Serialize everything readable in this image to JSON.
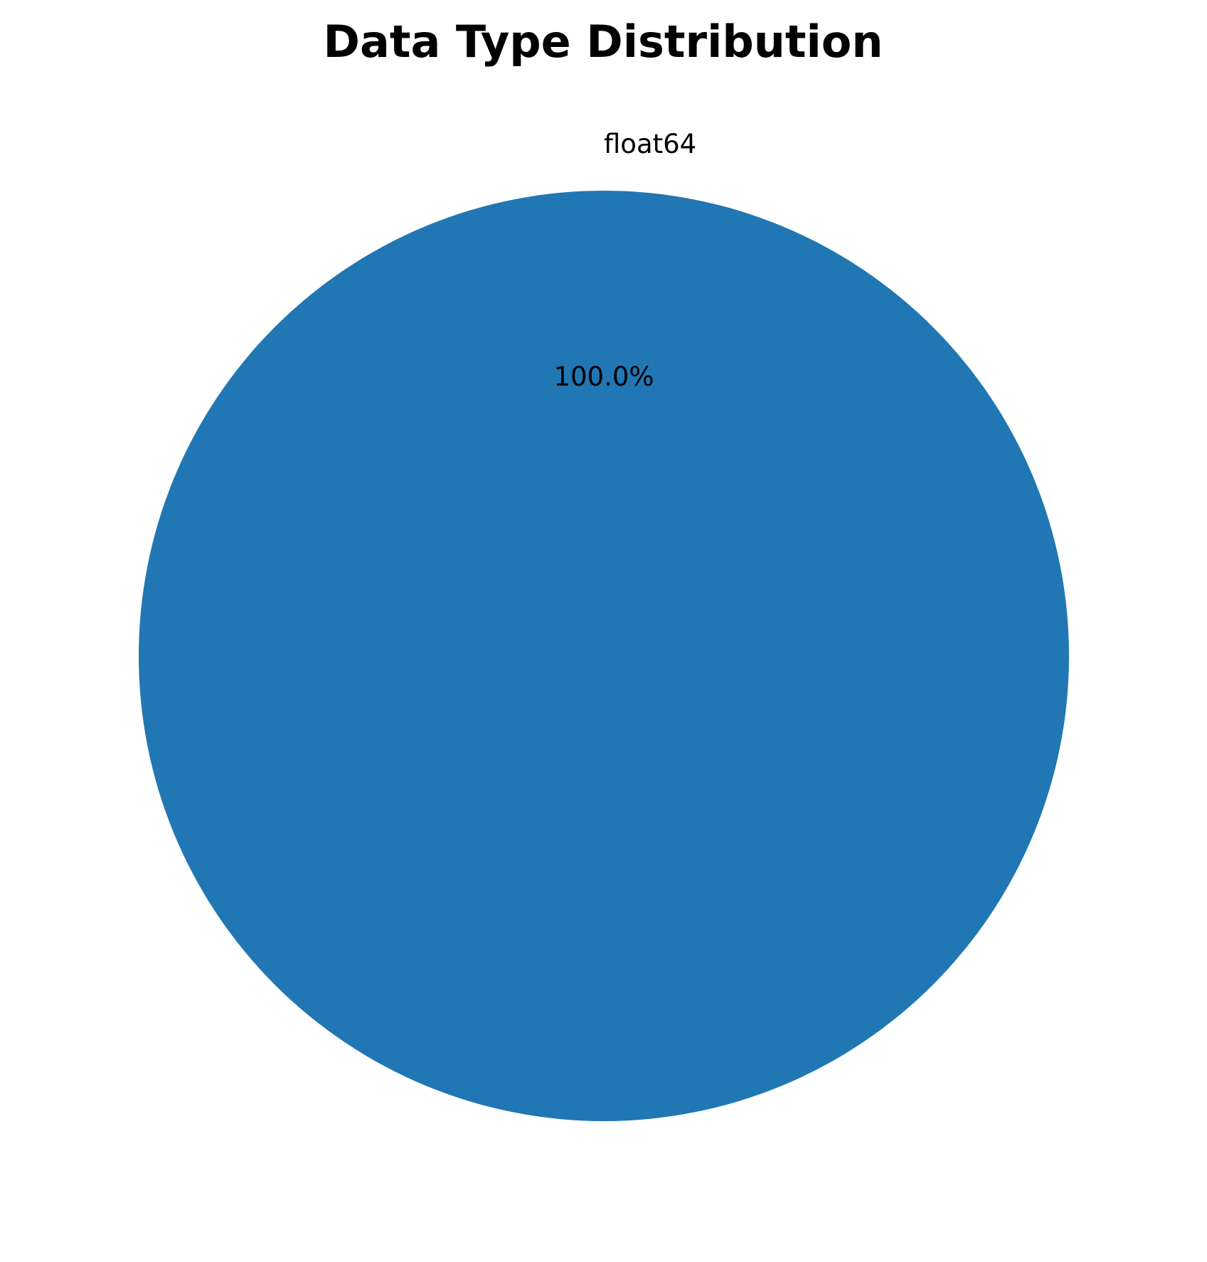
{
  "chart_data": {
    "type": "pie",
    "title": "Data Type Distribution",
    "slices": [
      {
        "label": "float64",
        "value": 100.0,
        "percent_label": "100.0%",
        "color": "#2177b4"
      }
    ],
    "legend": false
  }
}
